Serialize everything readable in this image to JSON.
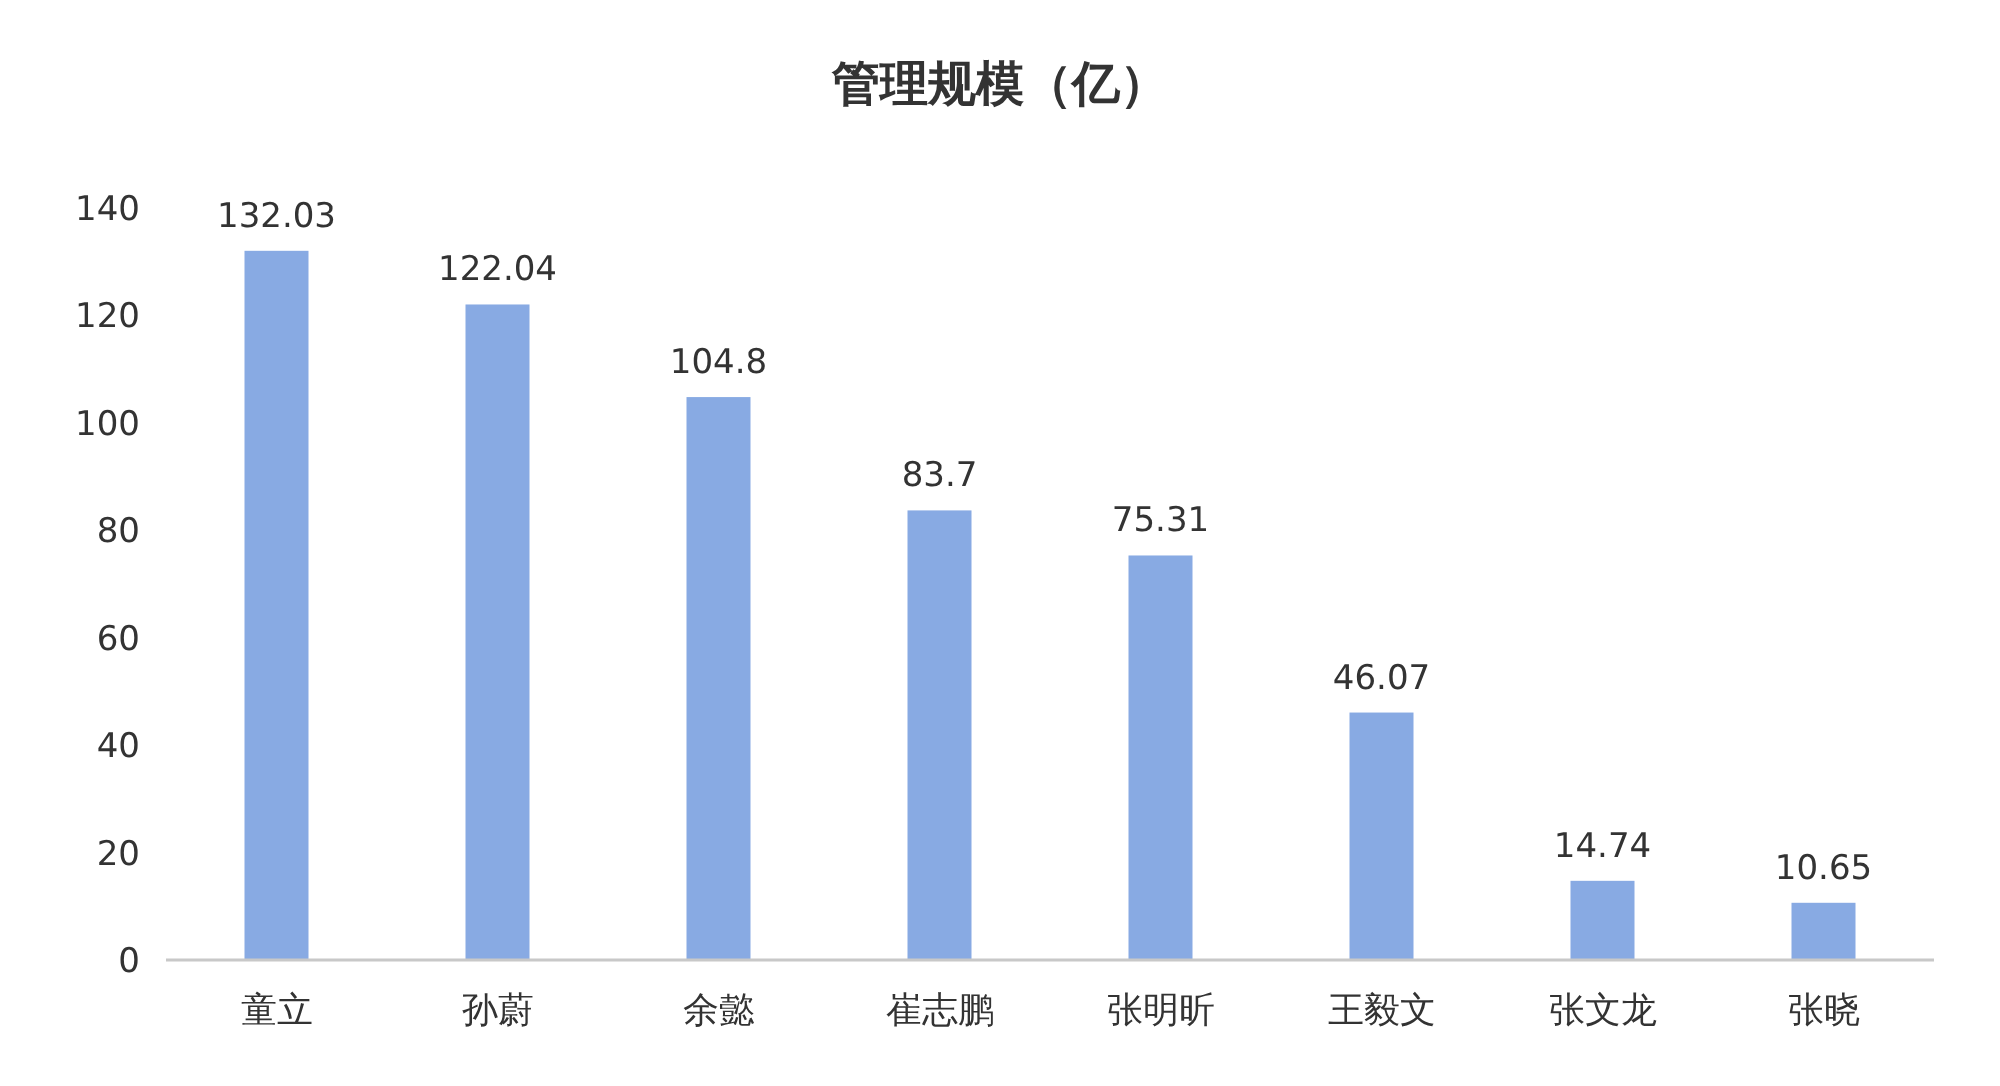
{
  "chart_data": {
    "type": "bar",
    "title": "管理规模（亿）",
    "categories": [
      "童立",
      "孙蔚",
      "余懿",
      "崔志鹏",
      "张明昕",
      "王毅文",
      "张文龙",
      "张晓"
    ],
    "values": [
      132.03,
      122.04,
      104.8,
      83.7,
      75.31,
      46.07,
      14.74,
      10.65
    ],
    "color": "#88aae3",
    "ylim": [
      0,
      140
    ],
    "yticks": [
      0,
      20,
      40,
      60,
      80,
      100,
      120,
      140
    ],
    "data_labels": true,
    "grid": false
  }
}
